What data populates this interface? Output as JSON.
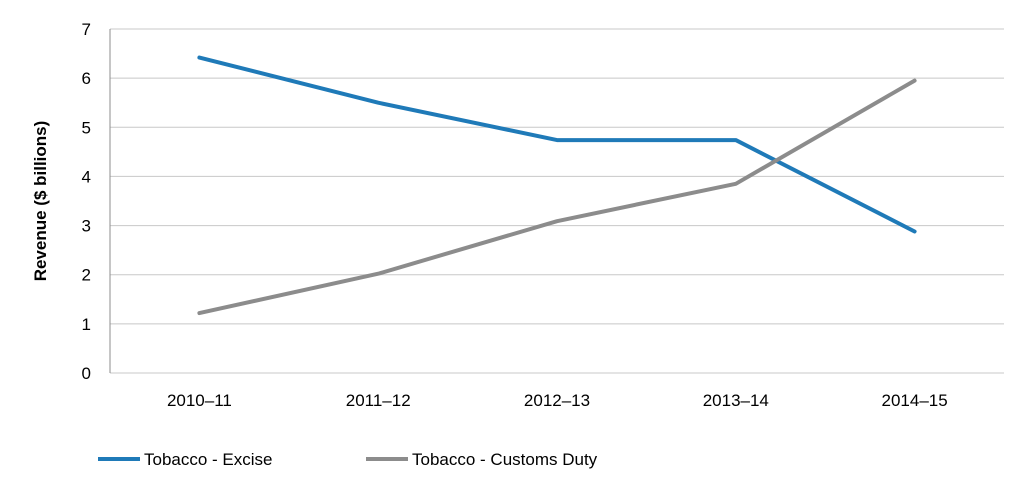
{
  "chart_data": {
    "type": "line",
    "categories": [
      "2010–11",
      "2011–12",
      "2012–13",
      "2013–14",
      "2014–15"
    ],
    "series": [
      {
        "name": "Tobacco - Excise",
        "color": "#1f7ab8",
        "values": [
          6.42,
          5.5,
          4.74,
          4.74,
          2.88
        ]
      },
      {
        "name": "Tobacco - Customs Duty",
        "color": "#8c8c8c",
        "values": [
          1.22,
          2.02,
          3.09,
          3.85,
          5.95
        ]
      }
    ],
    "title": "",
    "xlabel": "",
    "ylabel": "Revenue ($ billions)",
    "ylim": [
      0,
      7
    ],
    "yticks": [
      "0",
      "1",
      "2",
      "3",
      "4",
      "5",
      "6",
      "7"
    ],
    "grid": true,
    "legend_position": "bottom-left"
  }
}
